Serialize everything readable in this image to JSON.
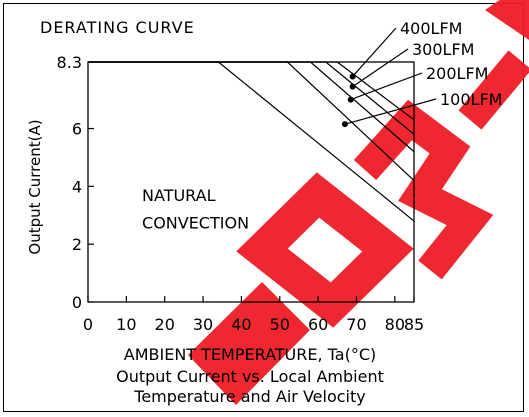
{
  "chart_data": {
    "type": "line",
    "title": "DERATING CURVE",
    "xlabel": "AMBIENT TEMPERATURE, Ta(°C)",
    "ylabel": "Output Current(A)",
    "caption_lines": [
      "Output Current vs. Local Ambient",
      "Temperature and Air Velocity"
    ],
    "xlim": [
      0,
      85
    ],
    "ylim": [
      0,
      8.3
    ],
    "x_ticks": [
      0,
      10,
      20,
      30,
      40,
      50,
      60,
      70,
      80,
      85
    ],
    "y_ticks": [
      0,
      2,
      4,
      6,
      8.3
    ],
    "y_tick_labels": [
      "0",
      "2",
      "4",
      "6",
      "8.3"
    ],
    "grid": false,
    "series": [
      {
        "points": [
          [
            0,
            8.3
          ],
          [
            34,
            8.3
          ],
          [
            85,
            2.8
          ]
        ]
      },
      {
        "points": [
          [
            0,
            8.3
          ],
          [
            52,
            8.3
          ],
          [
            85,
            4.2
          ]
        ]
      },
      {
        "points": [
          [
            0,
            8.3
          ],
          [
            58,
            8.3
          ],
          [
            85,
            5.2
          ]
        ]
      },
      {
        "points": [
          [
            0,
            8.3
          ],
          [
            62,
            8.3
          ],
          [
            85,
            5.8
          ]
        ]
      },
      {
        "points": [
          [
            0,
            8.3
          ],
          [
            65,
            8.3
          ],
          [
            85,
            6.3
          ]
        ]
      }
    ],
    "annotations": [
      {
        "text": "400LFM",
        "point": [
          69,
          7.8
        ]
      },
      {
        "text": "300LFM",
        "point": [
          69,
          7.45
        ]
      },
      {
        "text": "200LFM",
        "point": [
          68.5,
          7.0
        ]
      },
      {
        "text": "100LFM",
        "point": [
          67,
          6.15
        ]
      },
      {
        "text": "NATURAL",
        "at": [
          12,
          3.5
        ]
      },
      {
        "text": "CONVECTION",
        "at": [
          12,
          2.55
        ]
      }
    ]
  },
  "colors": {
    "ink": "#000000",
    "watermark": "#ee1c25"
  }
}
